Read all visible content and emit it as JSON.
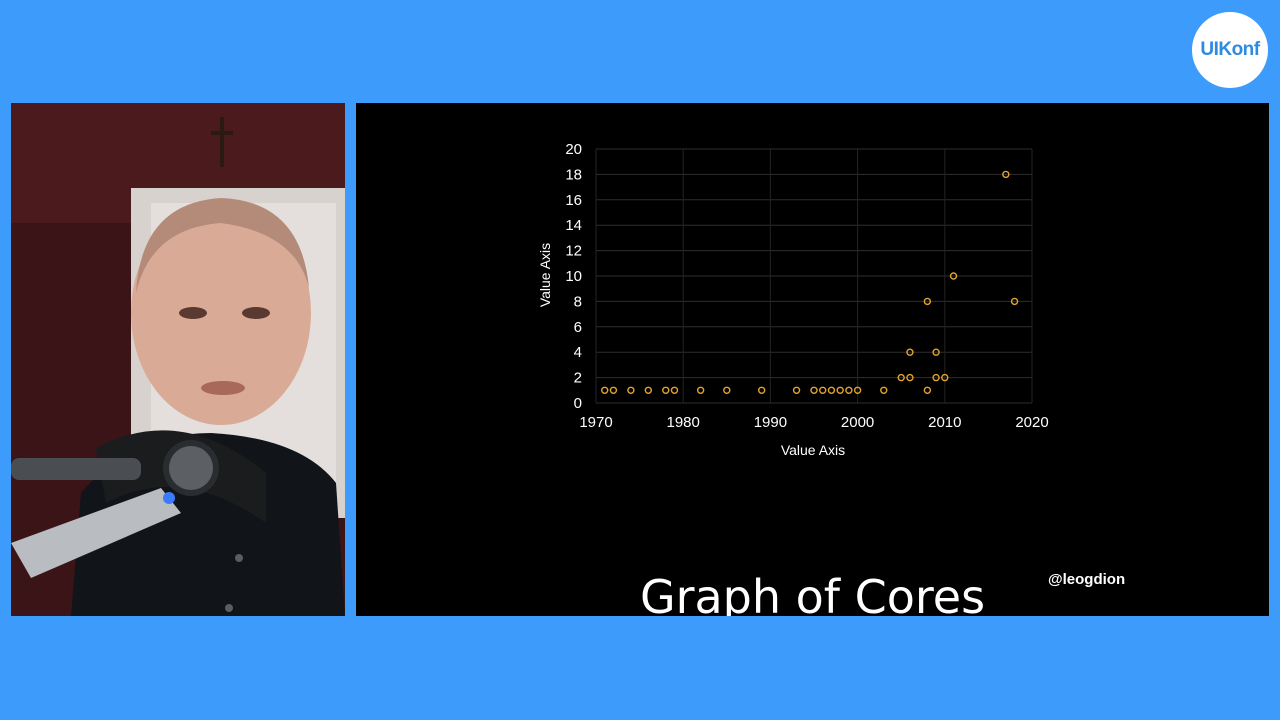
{
  "logo": {
    "text": "UIKonf"
  },
  "slide": {
    "title": "Graph of Cores",
    "handle": "@leogdion"
  },
  "colors": {
    "background": "#3d9cfb",
    "marker": "#e3a42c"
  },
  "chart_data": {
    "type": "scatter",
    "xlabel": "Value Axis",
    "ylabel": "Value Axis",
    "xlim": [
      1970,
      2020
    ],
    "ylim": [
      0,
      20
    ],
    "x_ticks": [
      "1970",
      "1980",
      "1990",
      "2000",
      "2010",
      "2020"
    ],
    "y_ticks": [
      "0",
      "2",
      "4",
      "6",
      "8",
      "10",
      "12",
      "14",
      "16",
      "18",
      "20"
    ],
    "grid": true,
    "series": [
      {
        "x": [
          1971,
          1972,
          1974,
          1976,
          1978,
          1979,
          1982,
          1985,
          1989,
          1993,
          1995,
          1996,
          1997,
          1998,
          1999,
          2000,
          2003,
          2005,
          2006,
          2006,
          2008,
          2008,
          2009,
          2009,
          2010,
          2011,
          2017,
          2018
        ],
        "y": [
          1,
          1,
          1,
          1,
          1,
          1,
          1,
          1,
          1,
          1,
          1,
          1,
          1,
          1,
          1,
          1,
          1,
          2,
          2,
          4,
          1,
          8,
          2,
          4,
          2,
          10,
          18,
          8
        ]
      }
    ]
  }
}
